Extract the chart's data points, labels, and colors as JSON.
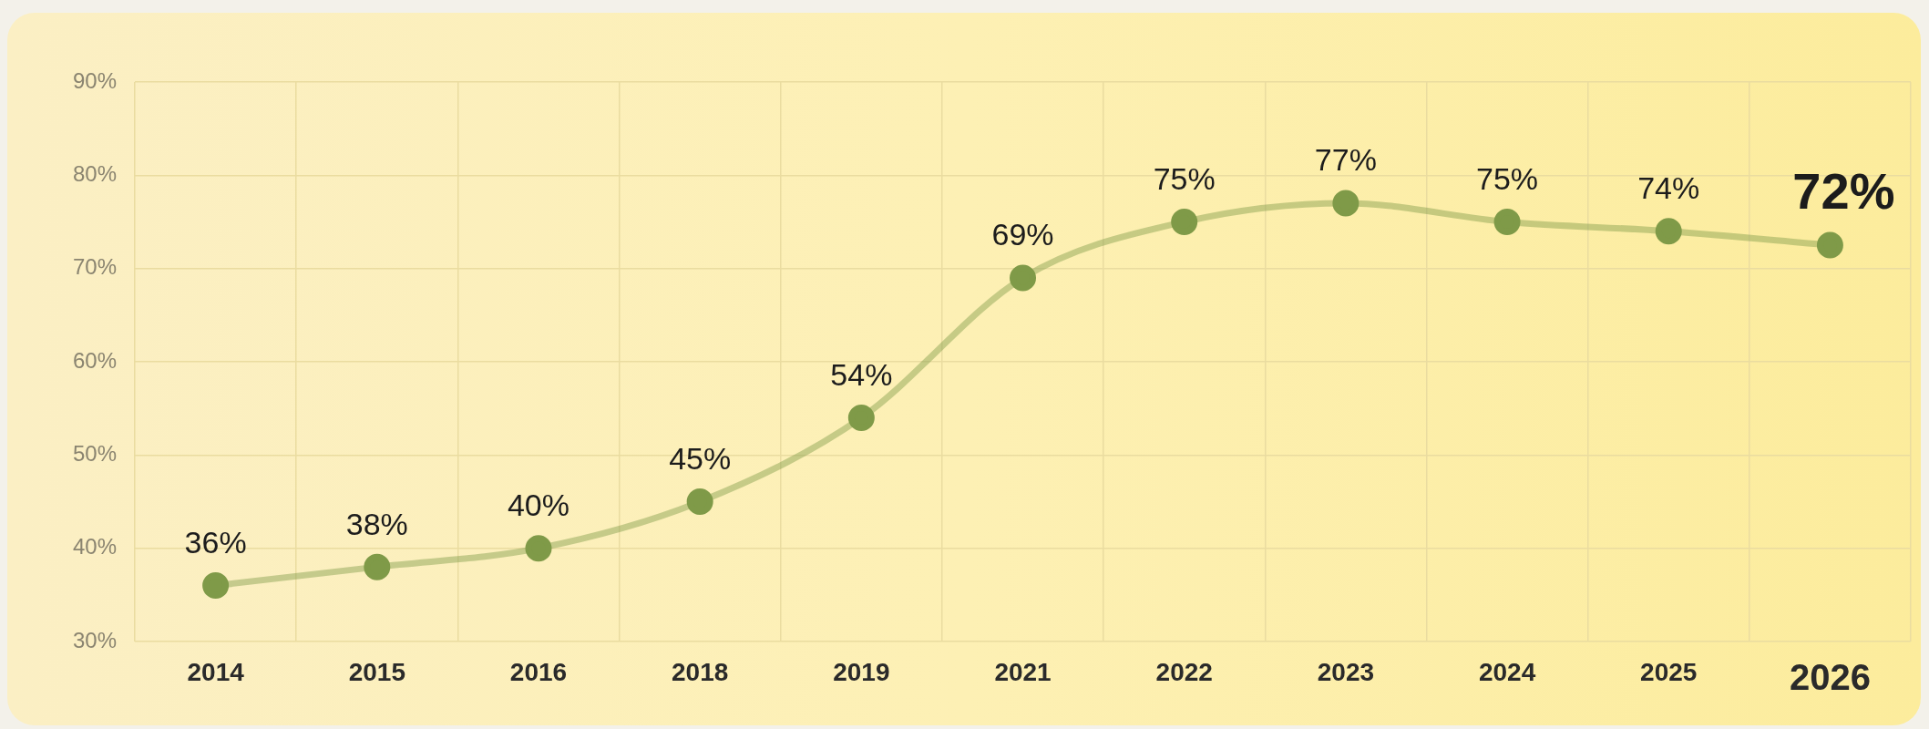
{
  "chart_data": {
    "type": "line",
    "categories": [
      "2014",
      "2015",
      "2016",
      "2018",
      "2019",
      "2021",
      "2022",
      "2023",
      "2024",
      "2025",
      "2026"
    ],
    "series": [
      {
        "color": "#7f9a48",
        "values": [
          36,
          38,
          40,
          45,
          54,
          69,
          75,
          77,
          75,
          74,
          72.5
        ],
        "value_labels": [
          "36%",
          "38%",
          "40%",
          "45%",
          "54%",
          "69%",
          "75%",
          "77%",
          "75%",
          "74%",
          "72%"
        ]
      }
    ],
    "ylim": [
      30,
      90
    ],
    "yticks": [
      {
        "value": 30,
        "label": "30%"
      },
      {
        "value": 40,
        "label": "40%"
      },
      {
        "value": 50,
        "label": "50%"
      },
      {
        "value": 60,
        "label": "60%"
      },
      {
        "value": 70,
        "label": "70%"
      },
      {
        "value": 80,
        "label": "80%"
      },
      {
        "value": 90,
        "label": "90%"
      }
    ],
    "grid": true,
    "legend": false,
    "marker": "circle",
    "line_style": "solid"
  }
}
